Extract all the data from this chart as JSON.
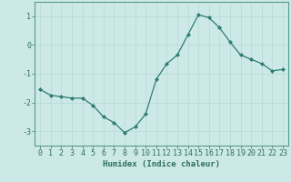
{
  "x": [
    0,
    1,
    2,
    3,
    4,
    5,
    6,
    7,
    8,
    9,
    10,
    11,
    12,
    13,
    14,
    15,
    16,
    17,
    18,
    19,
    20,
    21,
    22,
    23
  ],
  "y": [
    -1.55,
    -1.75,
    -1.8,
    -1.85,
    -1.85,
    -2.1,
    -2.5,
    -2.7,
    -3.05,
    -2.85,
    -2.4,
    -1.2,
    -0.65,
    -0.35,
    0.35,
    1.05,
    0.95,
    0.6,
    0.1,
    -0.35,
    -0.5,
    -0.65,
    -0.9,
    -0.85
  ],
  "line_color": "#2e7d6e",
  "marker": "D",
  "marker_size": 2.0,
  "bg_color": "#cce9e7",
  "grid_color": "#b8d8d5",
  "axis_color": "#5a9a8a",
  "tick_color": "#2e6e60",
  "xlabel": "Humidex (Indice chaleur)",
  "xlabel_fontsize": 6.5,
  "tick_fontsize": 6,
  "ylim": [
    -3.5,
    1.5
  ],
  "yticks": [
    -3,
    -2,
    -1,
    0,
    1
  ],
  "xlim": [
    -0.5,
    23.5
  ],
  "xticks": [
    0,
    1,
    2,
    3,
    4,
    5,
    6,
    7,
    8,
    9,
    10,
    11,
    12,
    13,
    14,
    15,
    16,
    17,
    18,
    19,
    20,
    21,
    22,
    23
  ]
}
